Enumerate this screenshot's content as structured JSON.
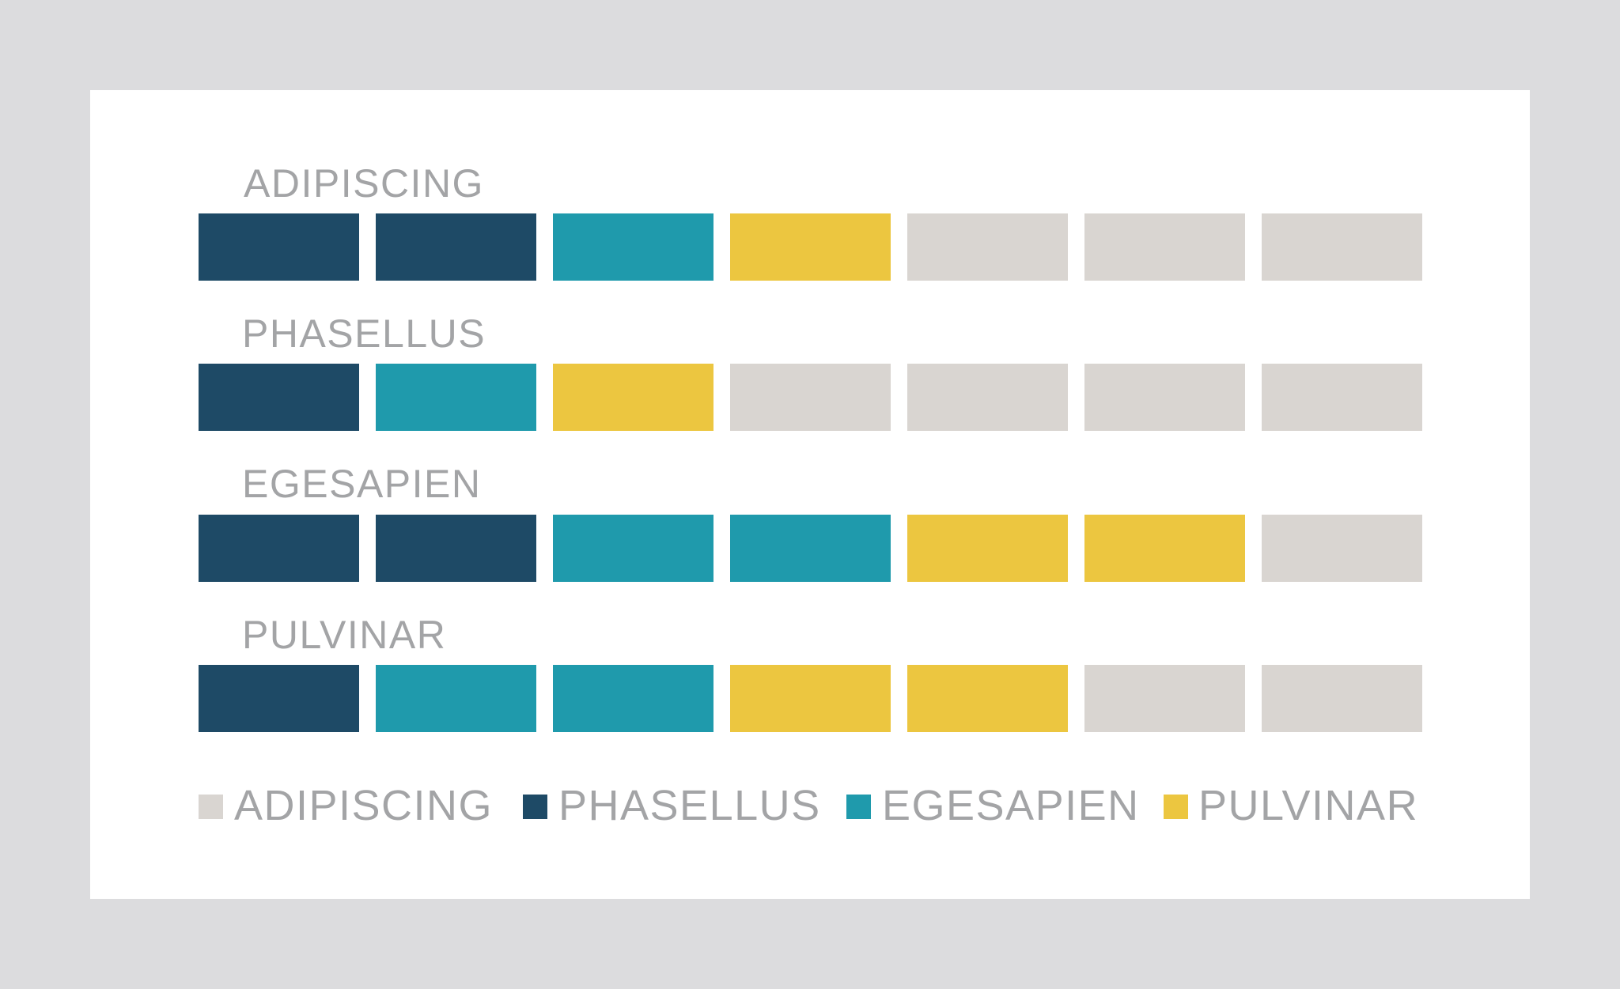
{
  "chart_data": {
    "type": "bar",
    "rows": [
      {
        "label": "ADIPISCING",
        "segments": [
          "PHASELLUS",
          "PHASELLUS",
          "EGESAPIEN",
          "PULVINAR",
          "ADIPISCING",
          "ADIPISCING",
          "ADIPISCING"
        ]
      },
      {
        "label": "PHASELLUS",
        "segments": [
          "PHASELLUS",
          "EGESAPIEN",
          "PULVINAR",
          "ADIPISCING",
          "ADIPISCING",
          "ADIPISCING",
          "ADIPISCING"
        ]
      },
      {
        "label": "EGESAPIEN",
        "segments": [
          "PHASELLUS",
          "PHASELLUS",
          "EGESAPIEN",
          "EGESAPIEN",
          "PULVINAR",
          "PULVINAR",
          "ADIPISCING"
        ]
      },
      {
        "label": "PULVINAR",
        "segments": [
          "PHASELLUS",
          "EGESAPIEN",
          "EGESAPIEN",
          "PULVINAR",
          "PULVINAR",
          "ADIPISCING",
          "ADIPISCING"
        ]
      }
    ],
    "legend": [
      {
        "name": "ADIPISCING",
        "color": "#d9d5d1"
      },
      {
        "name": "PHASELLUS",
        "color": "#1e4a66"
      },
      {
        "name": "EGESAPIEN",
        "color": "#1f9aac"
      },
      {
        "name": "PULVINAR",
        "color": "#ecc640"
      }
    ],
    "segments_per_row": 7,
    "legend_placement": "bottom"
  }
}
